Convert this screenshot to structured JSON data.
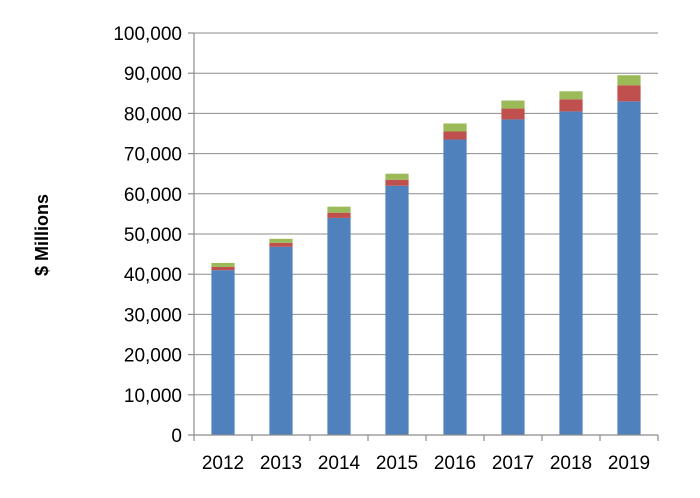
{
  "chart_data": {
    "type": "bar",
    "stacked": true,
    "title": "",
    "xlabel": "",
    "ylabel": "$ Millions",
    "ylim": [
      0,
      100000
    ],
    "yticks": [
      0,
      10000,
      20000,
      30000,
      40000,
      50000,
      60000,
      70000,
      80000,
      90000,
      100000
    ],
    "ytick_labels": [
      "0",
      "10,000",
      "20,000",
      "30,000",
      "40,000",
      "50,000",
      "60,000",
      "70,000",
      "80,000",
      "90,000",
      "100,000"
    ],
    "categories": [
      "2012",
      "2013",
      "2014",
      "2015",
      "2016",
      "2017",
      "2018",
      "2019"
    ],
    "series": [
      {
        "color": "#4f81bd",
        "values": [
          41000,
          46800,
          54000,
          62000,
          73500,
          78500,
          80500,
          83000
        ]
      },
      {
        "color": "#c0504d",
        "values": [
          800,
          1000,
          1300,
          1500,
          2000,
          2700,
          3000,
          4000
        ]
      },
      {
        "color": "#9bbb59",
        "values": [
          1000,
          1000,
          1500,
          1500,
          2000,
          2000,
          2000,
          2500
        ]
      }
    ],
    "grid": true,
    "legend": "none"
  }
}
